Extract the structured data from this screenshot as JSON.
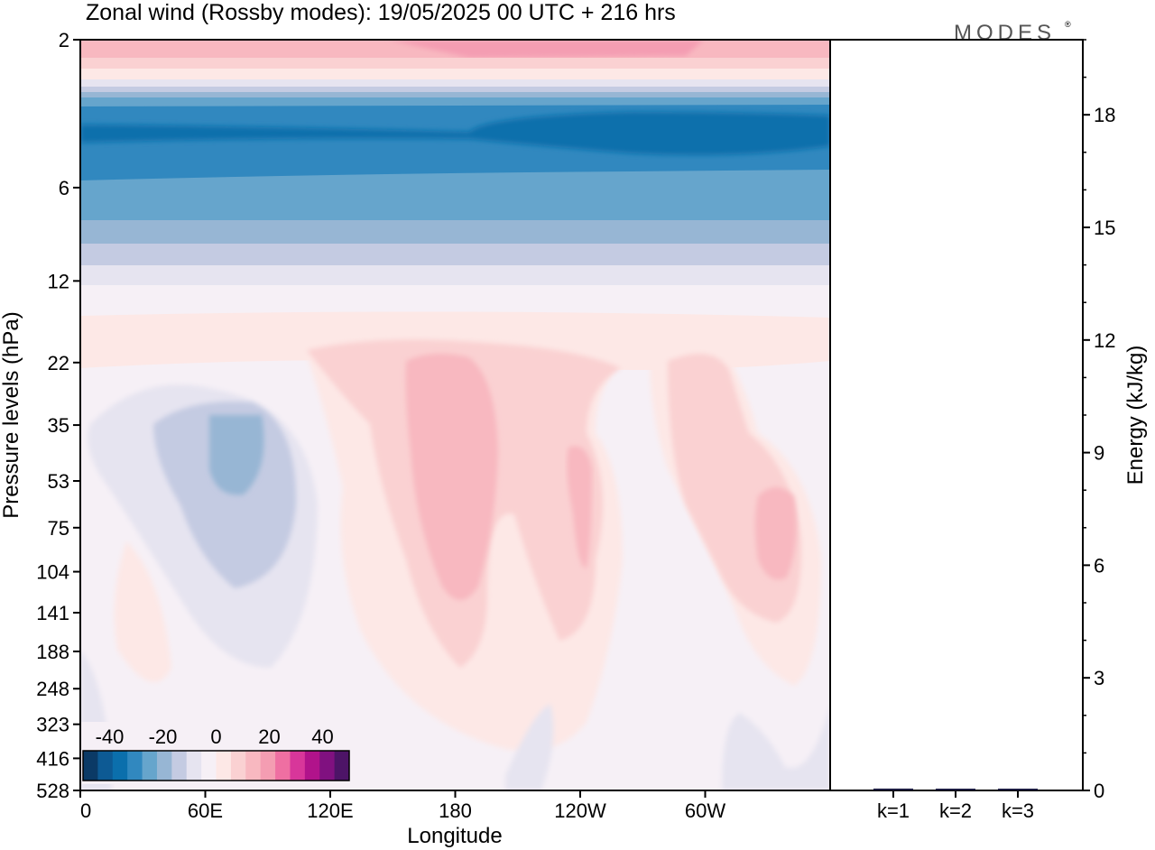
{
  "title": "Zonal wind (Rossby modes):  19/05/2025  00 UTC  + 216 hrs",
  "brand": "MODES",
  "brand_mark": "®",
  "chart_data": [
    {
      "type": "heatmap",
      "xlabel": "Longitude",
      "ylabel": "Pressure levels (hPa)",
      "x_ticks": [
        "0",
        "60E",
        "120E",
        "180",
        "120W",
        "60W"
      ],
      "x_tick_lon": [
        0,
        60,
        120,
        180,
        240,
        300
      ],
      "xlim": [
        0,
        360
      ],
      "y_ticks": [
        2,
        6,
        12,
        22,
        35,
        53,
        75,
        104,
        141,
        188,
        248,
        323,
        416,
        528
      ],
      "y_log": true,
      "colorbar": {
        "tick_labels": [
          "-40",
          "-20",
          "0",
          "20",
          "40"
        ],
        "colors": [
          "#0b3a66",
          "#0d5a94",
          "#0b6fac",
          "#3188bf",
          "#66a5cc",
          "#97b6d4",
          "#c4cbe2",
          "#e6e4f0",
          "#f6f0f6",
          "#fde8e6",
          "#fad1d2",
          "#f8b8c0",
          "#f49db2",
          "#ef6fa2",
          "#d8369a",
          "#b1138b",
          "#801180",
          "#4d1467"
        ]
      }
    },
    {
      "type": "bar",
      "categories": [
        "k=1",
        "k=2",
        "k=3"
      ],
      "values": [
        0.05,
        0.03,
        0.03
      ],
      "ylabel": "Energy (kJ/kg)",
      "ylim": [
        0,
        20
      ],
      "y_ticks": [
        "0",
        "3",
        "6",
        "9",
        "12",
        "15",
        "18"
      ],
      "bar_color": "#1a1a40"
    }
  ]
}
